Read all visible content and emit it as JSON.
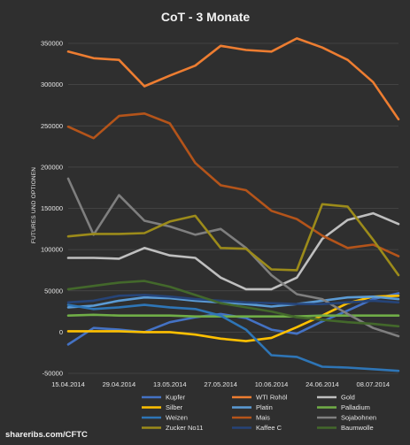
{
  "chart_data": {
    "type": "line",
    "title": "CoT - 3 Monate",
    "xlabel": "",
    "ylabel": "FUTURES UND OPTIONEN",
    "ylim": [
      -50000,
      350000
    ],
    "yticks": [
      -50000,
      0,
      50000,
      100000,
      150000,
      200000,
      250000,
      300000,
      350000
    ],
    "ytick_labels": [
      "-50000",
      "0",
      "50000",
      "100000",
      "150000",
      "200000",
      "250000",
      "300000",
      "350000"
    ],
    "x": [
      "15.04.2014",
      "22.04.2014",
      "29.04.2014",
      "06.05.2014",
      "13.05.2014",
      "20.05.2014",
      "27.05.2014",
      "03.06.2014",
      "10.06.2014",
      "17.06.2014",
      "24.06.2014",
      "01.07.2014",
      "08.07.2014",
      "15.07.2014"
    ],
    "xtick_labels": [
      "15.04.2014",
      "29.04.2014",
      "13.05.2014",
      "27.05.2014",
      "10.06.2014",
      "24.06.2014",
      "08.07.2014"
    ],
    "xtick_positions": [
      0,
      2,
      4,
      6,
      8,
      10,
      12
    ],
    "grid": true,
    "legend_position": "bottom",
    "series": [
      {
        "name": "Kupfer",
        "color": "#4472c4",
        "values": [
          -15000,
          5000,
          3000,
          0,
          12000,
          18000,
          22000,
          17000,
          3000,
          -2000,
          13000,
          26000,
          40000,
          47000
        ]
      },
      {
        "name": "WTI Rohöl",
        "color": "#ed7d31",
        "values": [
          340000,
          332000,
          330000,
          298000,
          311000,
          323000,
          347000,
          342000,
          340000,
          356000,
          345000,
          330000,
          303000,
          258000
        ]
      },
      {
        "name": "Gold",
        "color": "#bfbfbf",
        "values": [
          90000,
          90000,
          89000,
          102000,
          93000,
          90000,
          66000,
          52000,
          52000,
          66000,
          113000,
          136000,
          144000,
          131000
        ]
      },
      {
        "name": "Silber",
        "color": "#ffc000",
        "values": [
          1000,
          1000,
          1000,
          0,
          0,
          -3000,
          -8000,
          -11000,
          -7000,
          6000,
          20000,
          35000,
          43000,
          44000
        ]
      },
      {
        "name": "Platin",
        "color": "#5b9bd5",
        "values": [
          30000,
          32000,
          38000,
          42000,
          41000,
          38000,
          36000,
          34000,
          31000,
          34000,
          38000,
          42000,
          43000,
          40000
        ]
      },
      {
        "name": "Palladium",
        "color": "#70ad47",
        "values": [
          20000,
          21000,
          20000,
          20000,
          20000,
          19000,
          19000,
          19000,
          19000,
          19000,
          20000,
          20000,
          20000,
          20000
        ]
      },
      {
        "name": "Weizen",
        "color": "#2e75b6",
        "values": [
          33000,
          28000,
          30000,
          33000,
          30000,
          28000,
          20000,
          3000,
          -28000,
          -30000,
          -42000,
          -43000,
          -45000,
          -47000
        ]
      },
      {
        "name": "Mais",
        "color": "#b4541a",
        "values": [
          249000,
          235000,
          262000,
          265000,
          253000,
          205000,
          178000,
          172000,
          147000,
          137000,
          117000,
          102000,
          106000,
          92000
        ]
      },
      {
        "name": "Sojabohnen",
        "color": "#7f7f7f",
        "values": [
          186000,
          118000,
          166000,
          135000,
          128000,
          118000,
          125000,
          102000,
          69000,
          46000,
          40000,
          22000,
          5000,
          -5000
        ]
      },
      {
        "name": "Zucker No11",
        "color": "#9c8b1a",
        "values": [
          116000,
          119000,
          119000,
          120000,
          134000,
          141000,
          102000,
          101000,
          76000,
          75000,
          155000,
          152000,
          112000,
          69000
        ]
      },
      {
        "name": "Kaffee C",
        "color": "#264478",
        "values": [
          36000,
          38000,
          44000,
          45000,
          43000,
          40000,
          38000,
          36000,
          35000,
          34000,
          34000,
          36000,
          38000,
          36000
        ]
      },
      {
        "name": "Baumwolle",
        "color": "#43682b",
        "values": [
          52000,
          56000,
          60000,
          62000,
          55000,
          45000,
          35000,
          30000,
          25000,
          18000,
          15000,
          12000,
          10000,
          7000
        ]
      }
    ]
  },
  "footer": {
    "source": "shareribs.com/CFTC"
  }
}
